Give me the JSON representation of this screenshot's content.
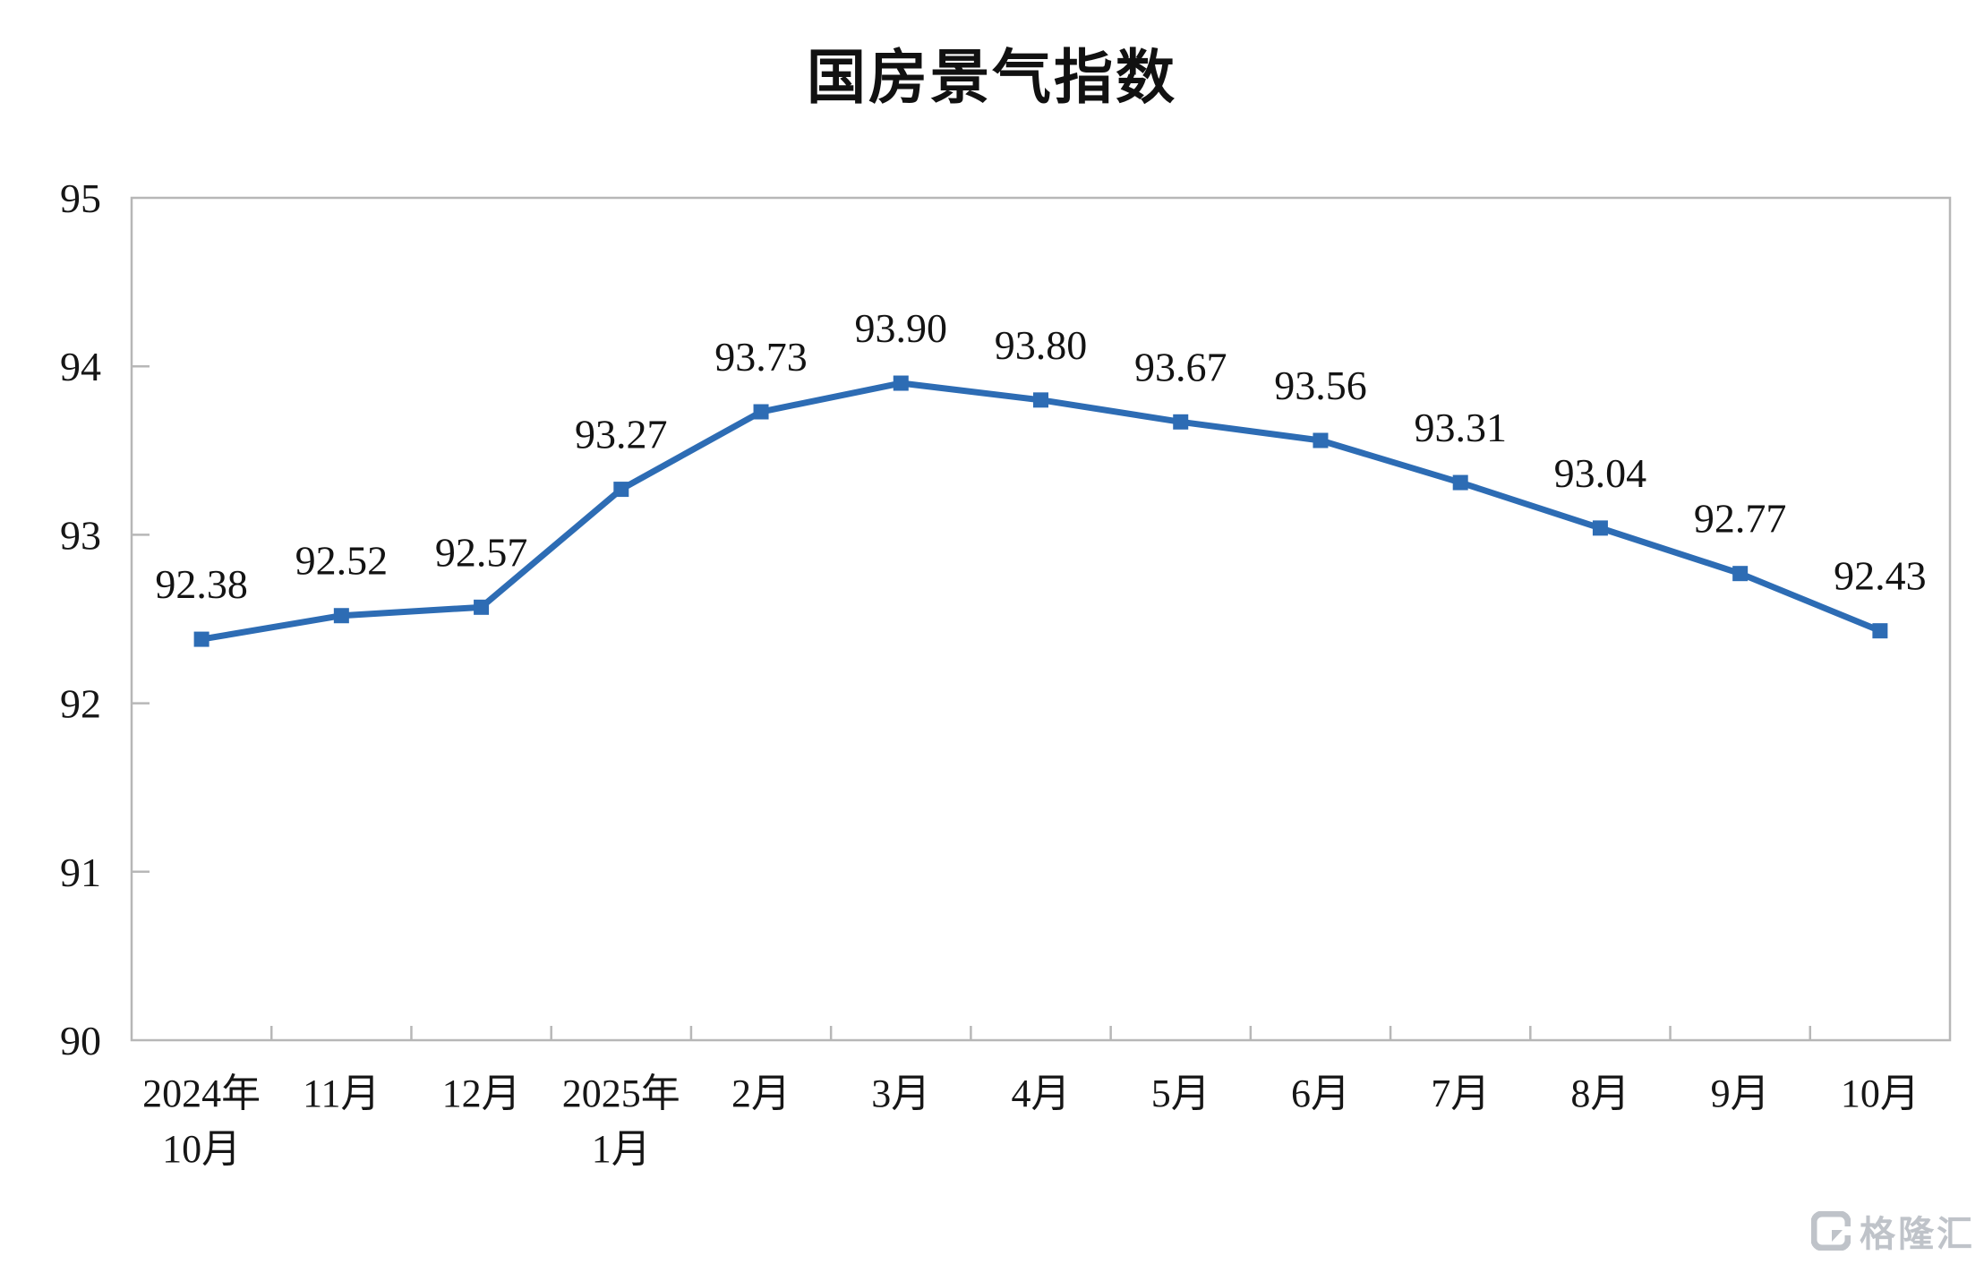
{
  "chart_data": {
    "type": "line",
    "title": "国房景气指数",
    "categories": [
      [
        "2024年",
        "10月"
      ],
      [
        "11月"
      ],
      [
        "12月"
      ],
      [
        "2025年",
        "1月"
      ],
      [
        "2月"
      ],
      [
        "3月"
      ],
      [
        "4月"
      ],
      [
        "5月"
      ],
      [
        "6月"
      ],
      [
        "7月"
      ],
      [
        "8月"
      ],
      [
        "9月"
      ],
      [
        "10月"
      ]
    ],
    "values": [
      92.38,
      92.52,
      92.57,
      93.27,
      93.73,
      93.9,
      93.8,
      93.67,
      93.56,
      93.31,
      93.04,
      92.77,
      92.43
    ],
    "data_labels": [
      "92.38",
      "92.52",
      "92.57",
      "93.27",
      "93.73",
      "93.90",
      "93.80",
      "93.67",
      "93.56",
      "93.31",
      "93.04",
      "92.77",
      "92.43"
    ],
    "xlabel": "",
    "ylabel": "",
    "ylim": [
      90,
      95
    ],
    "yticks": [
      90,
      91,
      92,
      93,
      94,
      95
    ],
    "grid": false,
    "legend_position": "none",
    "line_color": "#2d6cb4",
    "marker": "square"
  },
  "watermark": {
    "text": "格隆汇",
    "logo": "gelonghui-logo"
  }
}
